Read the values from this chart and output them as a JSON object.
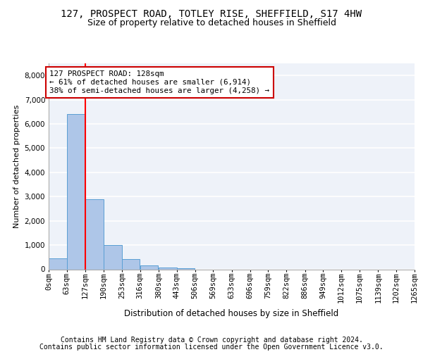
{
  "title_line1": "127, PROSPECT ROAD, TOTLEY RISE, SHEFFIELD, S17 4HW",
  "title_line2": "Size of property relative to detached houses in Sheffield",
  "xlabel": "Distribution of detached houses by size in Sheffield",
  "ylabel": "Number of detached properties",
  "footnote_line1": "Contains HM Land Registry data © Crown copyright and database right 2024.",
  "footnote_line2": "Contains public sector information licensed under the Open Government Licence v3.0.",
  "annotation_title": "127 PROSPECT ROAD: 128sqm",
  "annotation_line2": "← 61% of detached houses are smaller (6,914)",
  "annotation_line3": "38% of semi-detached houses are larger (4,258) →",
  "property_sqm": 128,
  "bin_edges": [
    0,
    63,
    127,
    190,
    253,
    316,
    380,
    443,
    506,
    569,
    633,
    696,
    759,
    822,
    886,
    949,
    1012,
    1075,
    1139,
    1202,
    1265
  ],
  "bin_labels": [
    "0sqm",
    "63sqm",
    "127sqm",
    "190sqm",
    "253sqm",
    "316sqm",
    "380sqm",
    "443sqm",
    "506sqm",
    "569sqm",
    "633sqm",
    "696sqm",
    "759sqm",
    "822sqm",
    "886sqm",
    "949sqm",
    "1012sqm",
    "1075sqm",
    "1139sqm",
    "1202sqm",
    "1265sqm"
  ],
  "bar_heights": [
    450,
    6400,
    2900,
    1000,
    430,
    150,
    80,
    30,
    0,
    0,
    0,
    0,
    0,
    0,
    0,
    0,
    0,
    0,
    0,
    0
  ],
  "bar_color": "#aec6e8",
  "bar_edge_color": "#5a9fd4",
  "red_line_x": 127,
  "ylim": [
    0,
    8500
  ],
  "yticks": [
    0,
    1000,
    2000,
    3000,
    4000,
    5000,
    6000,
    7000,
    8000
  ],
  "background_color": "#eef2f9",
  "grid_color": "#ffffff",
  "annotation_box_color": "#ffffff",
  "annotation_box_edge_color": "#cc0000",
  "title_fontsize": 10,
  "subtitle_fontsize": 9,
  "footnote_fontsize": 7,
  "axis_label_fontsize": 8,
  "tick_label_fontsize": 7.5
}
